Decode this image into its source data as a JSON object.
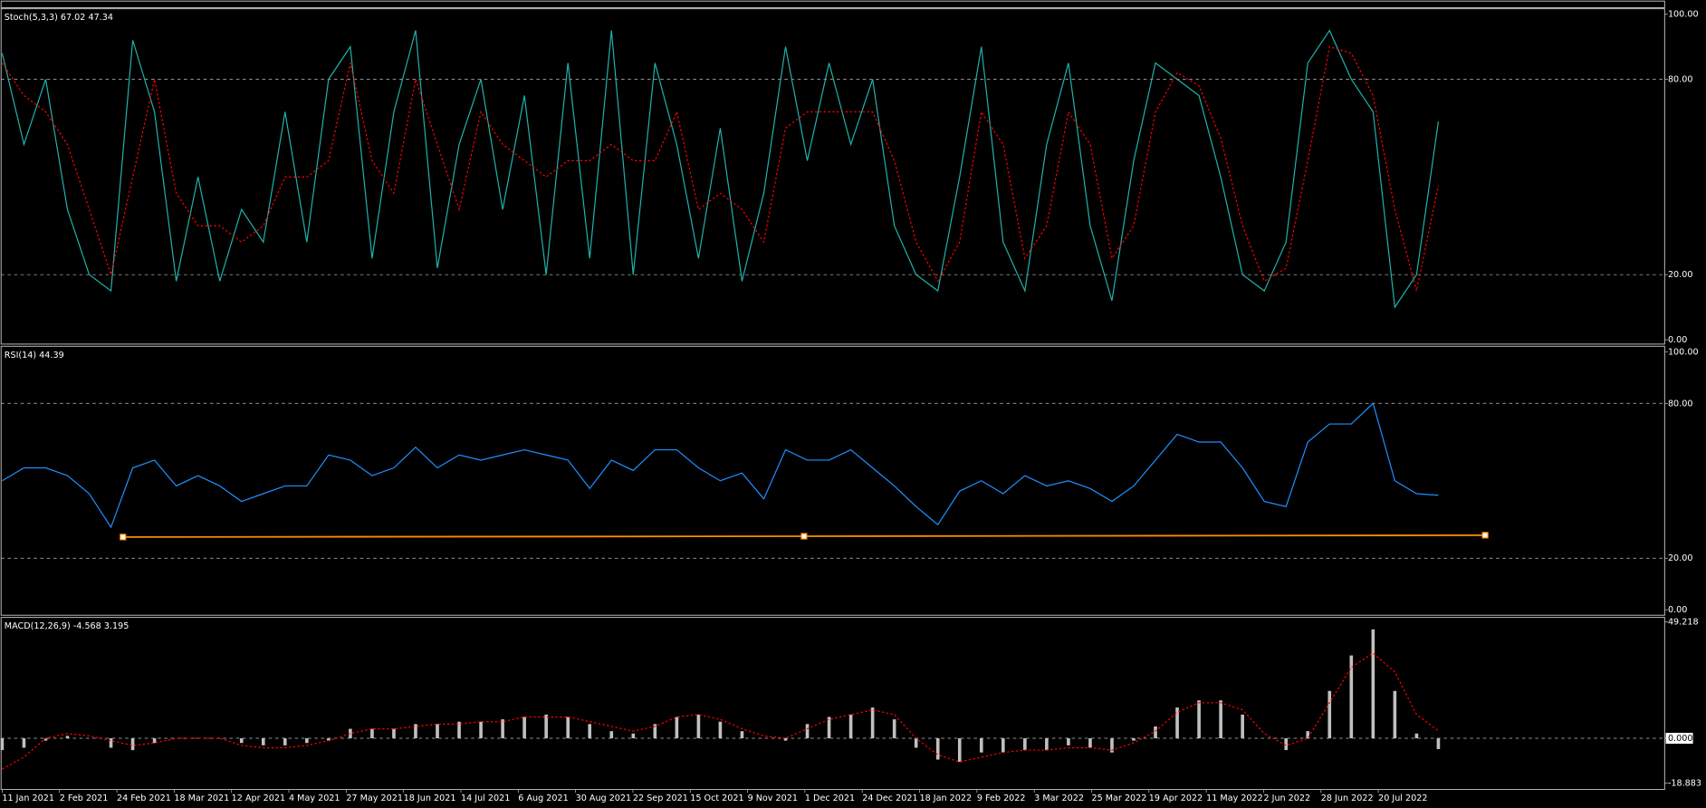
{
  "chart_data": [
    {
      "type": "line",
      "title": "Stoch(5,3,3) 67.02 47.34",
      "ylim": [
        0,
        100
      ],
      "yticks": [
        {
          "value": 100,
          "label": "100.00"
        },
        {
          "value": 80,
          "label": "80.00"
        },
        {
          "value": 20,
          "label": "20.00"
        },
        {
          "value": 0,
          "label": "0.00"
        }
      ],
      "series": [
        {
          "color": "#20b2aa",
          "dash": false,
          "values": [
            88,
            60,
            80,
            40,
            20,
            15,
            92,
            70,
            18,
            50,
            18,
            40,
            30,
            70,
            30,
            80,
            90,
            25,
            70,
            95,
            22,
            60,
            80,
            40,
            75,
            20,
            85,
            25,
            95,
            20,
            85,
            60,
            25,
            65,
            18,
            45,
            90,
            55,
            85,
            60,
            80,
            35,
            20,
            15,
            50,
            90,
            30,
            15,
            60,
            85,
            35,
            12,
            55,
            85,
            80,
            75,
            50,
            20,
            15,
            30,
            85,
            95,
            80,
            70,
            10,
            20,
            67.02
          ]
        },
        {
          "color": "#ff0000",
          "dash": true,
          "values": [
            85,
            75,
            70,
            60,
            40,
            20,
            50,
            80,
            45,
            35,
            35,
            30,
            35,
            50,
            50,
            55,
            85,
            55,
            45,
            80,
            60,
            40,
            70,
            60,
            55,
            50,
            55,
            55,
            60,
            55,
            55,
            70,
            40,
            45,
            40,
            30,
            65,
            70,
            70,
            70,
            70,
            55,
            30,
            18,
            30,
            70,
            60,
            25,
            35,
            70,
            60,
            25,
            35,
            70,
            82,
            78,
            62,
            35,
            18,
            22,
            55,
            90,
            88,
            75,
            40,
            15,
            47.34
          ]
        }
      ]
    },
    {
      "type": "line",
      "title": "RSI(14) 44.39",
      "ylim": [
        0,
        100
      ],
      "yticks": [
        {
          "value": 100,
          "label": "100.00"
        },
        {
          "value": 80,
          "label": "80.00"
        },
        {
          "value": 20,
          "label": "20.00"
        },
        {
          "value": 0,
          "label": "0.00"
        }
      ],
      "series": [
        {
          "color": "#1e90ff",
          "dash": false,
          "values": [
            50,
            55,
            55,
            52,
            45,
            32,
            55,
            58,
            48,
            52,
            48,
            42,
            45,
            48,
            48,
            60,
            58,
            52,
            55,
            63,
            55,
            60,
            58,
            60,
            62,
            60,
            58,
            47,
            58,
            54,
            62,
            62,
            55,
            50,
            53,
            43,
            62,
            58,
            58,
            62,
            55,
            48,
            40,
            33,
            46,
            50,
            45,
            52,
            48,
            50,
            47,
            42,
            48,
            58,
            68,
            65,
            65,
            55,
            42,
            40,
            65,
            72,
            72,
            80,
            50,
            45,
            44.39
          ]
        }
      ],
      "trendline": {
        "color": "#ff8c00",
        "x": [
          5.55,
          36.85,
          68.15
        ],
        "values": [
          28.2,
          28.5,
          28.9
        ]
      }
    },
    {
      "type": "macd",
      "title": "MACD(12,26,9) -4.568 3.195",
      "ylim": [
        -18.883,
        49.218
      ],
      "yticks": [
        49.218,
        {
          "value": 0,
          "label": "0.000"
        },
        -18.883
      ],
      "series": [
        {
          "color": "#c0c0c0",
          "style": "histogram",
          "values": [
            -5,
            -4,
            -1,
            1,
            0,
            -4,
            -5,
            -2,
            0,
            0,
            0,
            -2,
            -3,
            -3,
            -2,
            -1,
            4,
            4,
            4,
            6,
            6,
            7,
            7,
            8,
            9,
            10,
            9,
            6,
            3,
            2,
            6,
            9,
            10,
            7,
            3,
            0,
            -1,
            6,
            9,
            10,
            13,
            8,
            -4,
            -9,
            -10,
            -6,
            -6,
            -5,
            -5,
            -3,
            -4,
            -6,
            -1,
            5,
            13,
            16,
            16,
            10,
            0,
            -5,
            3,
            20,
            35,
            46,
            20,
            2,
            -4.568
          ]
        },
        {
          "color": "#ff0000",
          "style": "line",
          "dash": true,
          "values": [
            -13,
            -8,
            0,
            2,
            1,
            -1,
            -3,
            -2,
            0,
            0,
            0,
            -3,
            -4,
            -4,
            -3,
            -1,
            2,
            4,
            4,
            5,
            6,
            6,
            7,
            7,
            9,
            9,
            9,
            7,
            5,
            3,
            5,
            9,
            10,
            8,
            4,
            1,
            0,
            4,
            8,
            10,
            12,
            10,
            0,
            -7,
            -10,
            -8,
            -6,
            -5,
            -5,
            -4,
            -4,
            -5,
            -2,
            3,
            11,
            15,
            15,
            12,
            2,
            -3,
            0,
            15,
            30,
            36,
            28,
            10,
            3.195
          ]
        }
      ]
    }
  ],
  "time_axis": {
    "labels": [
      "11 Jan 2021",
      "2 Feb 2021",
      "24 Feb 2021",
      "18 Mar 2021",
      "12 Apr 2021",
      "4 May 2021",
      "27 May 2021",
      "18 Jun 2021",
      "14 Jul 2021",
      "6 Aug 2021",
      "30 Aug 2021",
      "22 Sep 2021",
      "15 Oct 2021",
      "9 Nov 2021",
      "1 Dec 2021",
      "24 Dec 2021",
      "18 Jan 2022",
      "9 Feb 2022",
      "3 Mar 2022",
      "25 Mar 2022",
      "19 Apr 2022",
      "11 May 2022",
      "2 Jun 2022",
      "28 Jun 2022",
      "20 Jul 2022"
    ]
  }
}
